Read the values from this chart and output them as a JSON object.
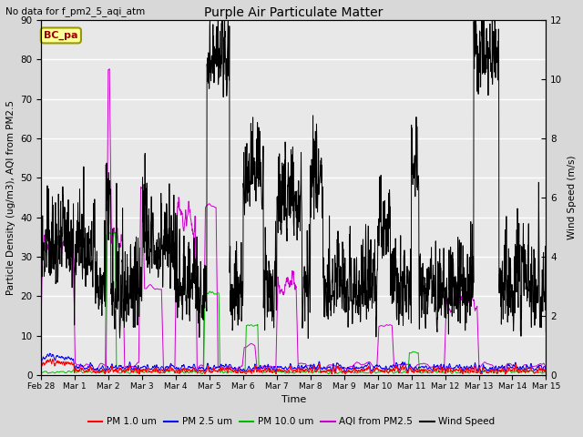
{
  "title": "Purple Air Particulate Matter",
  "subtitle": "No data for f_pm2_5_aqi_atm",
  "xlabel": "Time",
  "ylabel_left": "Particle Density (ug/m3), AQI from PM2.5",
  "ylabel_right": "Wind Speed (m/s)",
  "ylim_left": [
    0,
    90
  ],
  "ylim_right": [
    0,
    12
  ],
  "legend_label": "BC_pa",
  "series_labels": [
    "PM 1.0 um",
    "PM 2.5 um",
    "PM 10.0 um",
    "AQI from PM2.5",
    "Wind Speed"
  ],
  "series_colors": [
    "#ff0000",
    "#0000ff",
    "#00bb00",
    "#cc00cc",
    "#000000"
  ],
  "xtick_labels": [
    "Feb 28",
    "Mar 1",
    "Mar 2",
    "Mar 3",
    "Mar 4",
    "Mar 5",
    "Mar 6",
    "Mar 7",
    "Mar 8",
    "Mar 9",
    "Mar 10",
    "Mar 11",
    "Mar 12",
    "Mar 13",
    "Mar 14",
    "Mar 15"
  ],
  "bg_color": "#d8d8d8",
  "plot_bg_color": "#e8e8e8",
  "grid_color": "#ffffff",
  "seed": 7,
  "n_points": 2000
}
